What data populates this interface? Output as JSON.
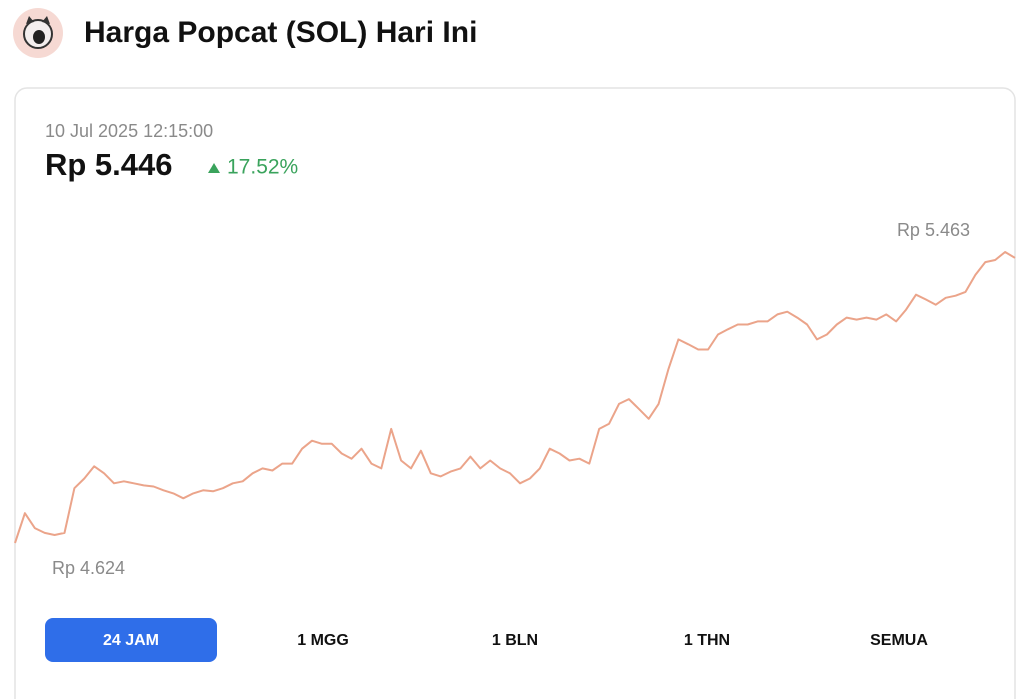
{
  "header": {
    "title": "Harga Popcat (SOL) Hari Ini"
  },
  "chart_data": {
    "type": "line",
    "timestamp": "10 Jul 2025 12:15:00",
    "price": {
      "value": 5446,
      "label": "Rp 5.446"
    },
    "change": {
      "value": 17.52,
      "label": "17.52%"
    },
    "color": "#eba48a",
    "high": {
      "value": 5463,
      "label": "Rp 5.463"
    },
    "low": {
      "value": 4624,
      "label": "Rp 4.624"
    },
    "values": [
      4624,
      4710,
      4667,
      4653,
      4647,
      4653,
      4782,
      4810,
      4845,
      4825,
      4796,
      4802,
      4796,
      4790,
      4787,
      4776,
      4767,
      4753,
      4767,
      4776,
      4773,
      4782,
      4796,
      4802,
      4825,
      4839,
      4833,
      4853,
      4853,
      4896,
      4919,
      4910,
      4910,
      4882,
      4867,
      4896,
      4853,
      4839,
      4953,
      4862,
      4839,
      4890,
      4825,
      4816,
      4830,
      4839,
      4873,
      4839,
      4862,
      4839,
      4825,
      4796,
      4810,
      4839,
      4896,
      4882,
      4862,
      4867,
      4853,
      4953,
      4968,
      5025,
      5039,
      5011,
      4982,
      5025,
      5126,
      5211,
      5197,
      5182,
      5182,
      5225,
      5240,
      5254,
      5254,
      5263,
      5263,
      5283,
      5291,
      5274,
      5254,
      5211,
      5225,
      5254,
      5274,
      5268,
      5274,
      5268,
      5283,
      5263,
      5297,
      5340,
      5326,
      5311,
      5331,
      5337,
      5348,
      5397,
      5434,
      5440,
      5463,
      5446
    ]
  },
  "tabs": {
    "items": [
      "24 JAM",
      "1 MGG",
      "1 BLN",
      "1 THN",
      "SEMUA"
    ],
    "active": 0
  }
}
